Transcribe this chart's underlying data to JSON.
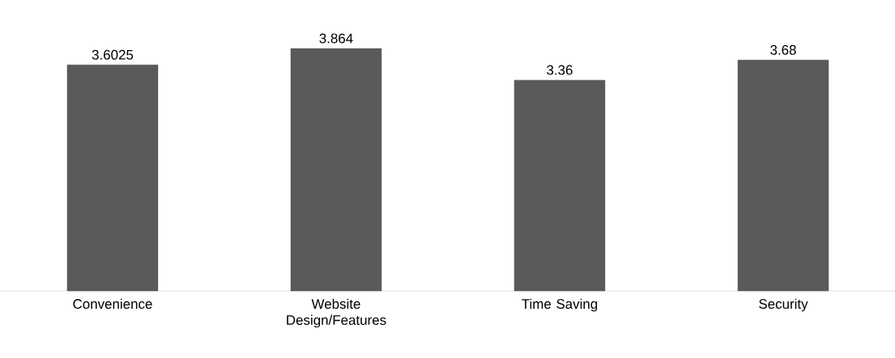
{
  "chart_data": {
    "type": "bar",
    "categories": [
      "Convenience",
      "Website Design/Features",
      "Time Saving",
      "Security"
    ],
    "values": [
      3.6025,
      3.864,
      3.36,
      3.68
    ],
    "color": "#5a5a5a",
    "data_labels": true
  }
}
